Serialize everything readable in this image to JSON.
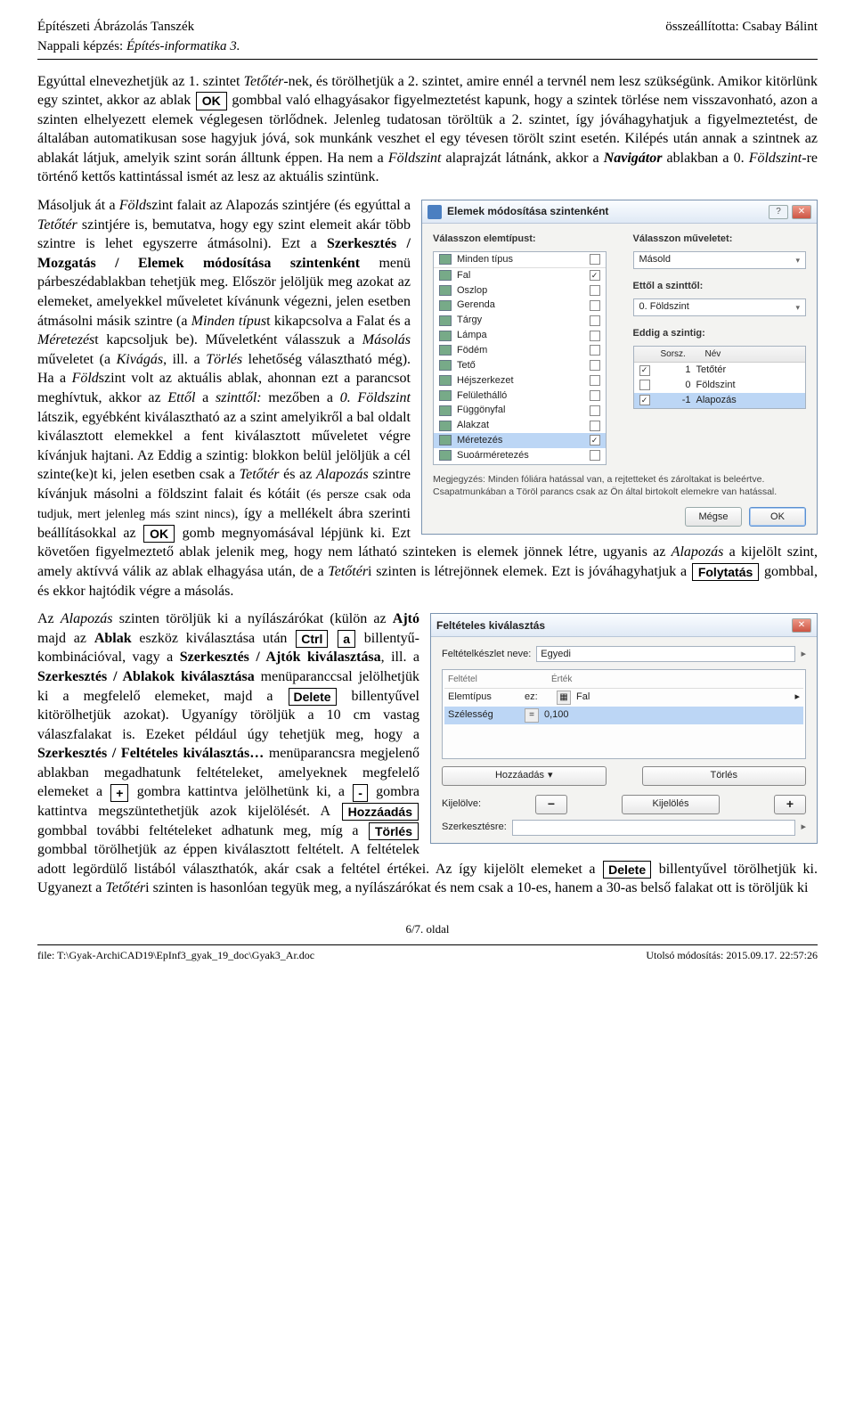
{
  "header": {
    "left_top": "Építészeti Ábrázolás Tanszék",
    "right_top": "összeállította: Csabay Bálint",
    "left_sub_prefix": "Nappali képzés:  ",
    "left_sub_italic": "Építés-informatika 3."
  },
  "para1": {
    "t1": "Egyúttal elnevezhetjük az 1. szintet ",
    "i1": "Tetőtér",
    "t2": "-nek, és törölhetjük a 2. szintet, amire ennél a tervnél nem lesz szükségünk. Amikor kitörlünk egy szintet, akkor az ablak ",
    "btn_ok": "OK",
    "t3": " gombbal való elhagyásakor figyelmeztetést kapunk, hogy a szintek törlése nem visszavonható, azon a szinten elhelyezett elemek véglegesen törlődnek. Jelenleg tudatosan töröltük a 2. szintet, így jóváhagyhatjuk a figyelmeztetést, de általában automatikusan sose hagyjuk jóvá, sok munkánk veszhet el egy tévesen törölt szint esetén. Kilépés után annak a szintnek az ablakát látjuk, amelyik szint során álltunk éppen. Ha nem a ",
    "i2": "Földszint",
    "t4": " alaprajzát látnánk, akkor a ",
    "bi1": "Navigátor",
    "t5": " ablakban a 0. ",
    "i3": "Földszint",
    "t6": "-re történő kettős kattintással ismét az lesz az aktuális szintünk."
  },
  "dialog1": {
    "title": "Elemek módosítása szintenként",
    "left_label": "Válasszon elemtípust:",
    "right_label": "Válasszon műveletet:",
    "combo_left": "Minden típus",
    "combo_right": "Másold",
    "types": [
      {
        "name": "Fal",
        "checked": true
      },
      {
        "name": "Oszlop",
        "checked": false
      },
      {
        "name": "Gerenda",
        "checked": false
      },
      {
        "name": "Tárgy",
        "checked": false
      },
      {
        "name": "Lámpa",
        "checked": false
      },
      {
        "name": "Födém",
        "checked": false
      },
      {
        "name": "Tető",
        "checked": false
      },
      {
        "name": "Héjszerkezet",
        "checked": false
      },
      {
        "name": "Felülethálló",
        "checked": false
      },
      {
        "name": "Függönyfal",
        "checked": false
      },
      {
        "name": "Alakzat",
        "checked": false
      },
      {
        "name": "Méretezés",
        "checked": true,
        "sel": true
      },
      {
        "name": "Suoárméretezés",
        "checked": false
      }
    ],
    "from_label": "Ettől a szinttől:",
    "from_value": "0. Földszint",
    "until_label": "Eddig a szintig:",
    "level_hdr1": "Sorsz.",
    "level_hdr2": "Név",
    "levels": [
      {
        "chk": true,
        "n": "1",
        "name": "Tetőtér"
      },
      {
        "chk": false,
        "n": "0",
        "name": "Földszint"
      },
      {
        "chk": true,
        "n": "-1",
        "name": "Alapozás",
        "sel": true
      }
    ],
    "note": "Megjegyzés: Minden fóliára hatással van, a rejtetteket és zároltakat is beleértve. Csapatmunkában a Töröl parancs csak az Ön által birtokolt elemekre van hatással.",
    "btn_cancel": "Mégse",
    "btn_ok": "OK"
  },
  "para2": {
    "t1": "Másoljuk át a ",
    "i1": "Föld",
    "t1b": "szint falait az Alapozás szintjére (és egyúttal a ",
    "i2": "Tet",
    "i2b": "ő",
    "i2c": "tér",
    "t2": " szintjére is, bemutatva, hogy egy szint elemeit akár több szintre is lehet egyszerre átmásolni). Ezt a ",
    "b1": "Szerkesztés / Mozgatás / Elemek módosítása szintenként",
    "t3": " menü párbeszédablakban tehetjük meg. Először jelöljük meg azokat az elemeket, amelyekkel műveletet kívánunk végezni, jelen esetben átmásolni másik szintre (a ",
    "i3": "Minden típus",
    "t4": "t kikapcsolva a ",
    "i3b": "Fal",
    "t4b": "at és a ",
    "i4": "Méretezés",
    "t5": "t kapcsoljuk be). Műveletként válasszuk a ",
    "i5": "Másolás",
    "t6": " műveletet (a ",
    "i6": "Kivágás",
    "t7": ", ill. a ",
    "i7": "Törlés",
    "t8": " lehetőség választható még). Ha a ",
    "i8": "Föld",
    "t8b": "szint volt az aktuális ablak, ahonnan ezt a parancsot meghívtuk, akkor az ",
    "i9": "Ettől",
    "t9": " a ",
    "i9b": "szinttől:",
    "t9c": " mezőben a ",
    "i10": "0. Földszint",
    "t10": " látszik, egyébként kiválasztható az a szint amelyikről a bal oldalt kiválasztott elemekkel a fent kiválasztott műveletet végre kívánjuk hajtani. Az ",
    "i10b": "Eddig a szintig:",
    "t10b": " blokkon belül jelöljük a cél szinte(ke)t ki, jelen esetben csak a ",
    "i11": "Tetőtér",
    "t11": " és az ",
    "i12": "Alapozás",
    "t12": " szintre kívánjuk másolni a földszint falait és kótáit ",
    "small": "(és persze csak oda tudjuk, mert jelenleg más szint nincs)",
    "t13": ", így a mellékelt ábra szerinti beállításokkal az ",
    "btn_ok": "OK",
    "t14": " gomb megnyomásával lépjünk ki. Ezt követően figyelmeztető ablak jelenik meg, hogy nem látható szinteken is elemek jönnek létre, ugyanis az ",
    "i13": "Alapozás",
    "t15": " a kijelölt szint, amely aktívvá válik az ablak elhagyása után, de a ",
    "i14": "Tetőtér",
    "t16": "i szinten is létrejönnek elemek. Ezt is jóváhagyhatjuk a ",
    "btn_foly": "Folytatás",
    "t17": " gombbal, és ekkor hajtódik végre a másolás."
  },
  "dialog2": {
    "title": "Feltételes kiválasztás",
    "set_label": "Feltételkészlet neve:",
    "set_value": "Egyedi",
    "col1": "Feltétel",
    "col2": "Érték",
    "rule1_l": "Elemtípus",
    "rule1_m": "ez:",
    "rule1_v": "Fal",
    "rule2_l": "Szélesség",
    "rule2_m": "=",
    "rule2_v": "0,100",
    "btn_add": "Hozzáadás",
    "btn_del": "Törlés",
    "kij_label": "Kijelölve:",
    "kij_btn": "Kijelölés",
    "sel_label": "Szerkesztésre:"
  },
  "para3": {
    "t1": "Az ",
    "i1": "Alapozás",
    "t2": " szinten töröljük ki a nyílászárókat (külön az ",
    "b1": "Ajtó",
    "t3": " majd az ",
    "b2": "Ablak",
    "t4": " eszköz kiválasztása után ",
    "k1": "Ctrl",
    "k2": "a",
    "t5": " billentyű-kombinációval, vagy a ",
    "b3": "Szerkesztés / Ajtók kiválasztása",
    "t6": ", ill. a ",
    "b4": "Szerkesztés / Ablakok kiválasztása",
    "t7": " menüparanccsal jelölhetjük ki a megfelelő elemeket, majd a ",
    "k3": "Delete",
    "t8": " billentyűvel kitörölhetjük azokat). Ugyanígy töröljük a 10 cm vastag válaszfalakat is. Ezeket például úgy tehetjük meg, hogy a ",
    "b5": "Szerkesztés / Feltételes kiválasztás…",
    "t9": " menüparancsra megjelenő ablakban megadhatunk feltételeket, amelyeknek megfelelő elemeket a ",
    "k4": "+",
    "t10": " gombra kattintva jelölhetünk ki, a ",
    "k5": "-",
    "t11": " gombra kattintva megszüntethetjük azok kijelölését. A ",
    "k6": "Hozzáadás",
    "t12": " gombbal további feltételeket adhatunk meg, míg a ",
    "k7": "Törlés",
    "t13": " gombbal törölhetjük az éppen kiválasztott feltételt. A feltételek adott legördülő listából választhatók, akár csak a feltétel értékei. Az így kijelölt elemeket a ",
    "k8": "Delete",
    "t14": " billentyűvel törölhetjük ki. Ugyanezt a ",
    "i2": "Tetőtér",
    "t15": "i szinten is hasonlóan tegyük meg, a nyílászárókat és nem csak a 10-es, hanem a 30-as belső falakat ott is töröljük ki"
  },
  "footer": {
    "page": "6/7. oldal",
    "left": "file: T:\\Gyak-ArchiCAD19\\EpInf3_gyak_19_doc\\Gyak3_Ar.doc",
    "right": "Utolsó módosítás: 2015.09.17.  22:57:26"
  }
}
